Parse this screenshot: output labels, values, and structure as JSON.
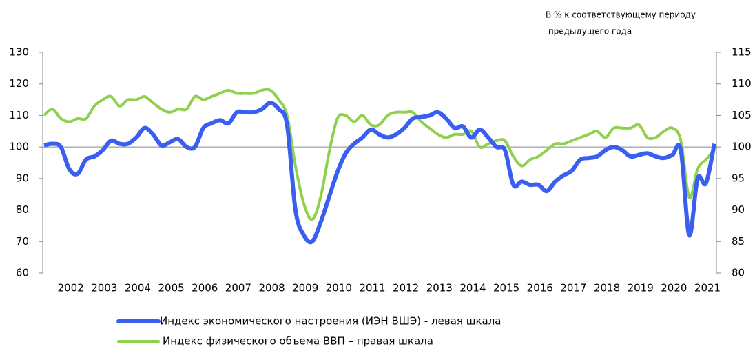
{
  "chart_data": {
    "type": "line",
    "annotation": [
      "В % к соответствующему периоду",
      " предыдущего года"
    ],
    "categories": [
      null,
      null,
      null,
      null,
      "2002",
      null,
      null,
      null,
      "2003",
      null,
      null,
      null,
      "2004",
      null,
      null,
      null,
      "2005",
      null,
      null,
      null,
      "2006",
      null,
      null,
      null,
      "2007",
      null,
      null,
      null,
      "2008",
      null,
      null,
      null,
      "2009",
      null,
      null,
      null,
      "2010",
      null,
      null,
      null,
      "2011",
      null,
      null,
      null,
      "2012",
      null,
      null,
      null,
      "2013",
      null,
      null,
      null,
      "2014",
      null,
      null,
      null,
      "2015",
      null,
      null,
      null,
      "2016",
      null,
      null,
      null,
      "2017",
      null,
      null,
      null,
      "2018",
      null,
      null,
      null,
      "2019",
      null,
      null,
      null,
      "2020",
      null,
      null,
      null,
      "2021"
    ],
    "series": [
      {
        "name": "Индекс экономического настроения (ИЭН ВШЭ) - левая шкала",
        "color": "#3a5ff0",
        "axis": "y",
        "values": [
          100.5,
          101,
          100,
          93,
          91.5,
          96,
          97,
          99,
          102,
          101,
          101,
          103,
          106,
          104,
          100.5,
          101.5,
          102.5,
          100,
          100,
          106,
          107.5,
          108.5,
          107.5,
          111,
          111,
          111,
          112,
          114,
          112,
          107,
          80,
          72,
          70,
          76,
          84,
          92,
          98,
          101,
          103,
          105.5,
          104,
          103,
          104,
          106,
          109,
          109.5,
          110,
          111,
          109,
          106,
          106.5,
          103,
          105.5,
          103,
          100,
          99,
          88,
          89,
          88,
          88,
          86,
          89,
          91,
          92.5,
          96,
          96.5,
          97,
          99,
          100,
          99,
          97,
          97.5,
          98,
          97,
          96.5,
          97.5,
          99,
          72,
          90,
          88.5,
          101
        ]
      },
      {
        "name": "Индекс физического объема ВВП – правая шкала",
        "color": "#8fd14f",
        "axis": "y2",
        "values": [
          105,
          106,
          104.5,
          104,
          104.5,
          104.5,
          106.5,
          107.5,
          108,
          106.5,
          107.5,
          107.5,
          108,
          107,
          106,
          105.5,
          106,
          106,
          108,
          107.5,
          108,
          108.5,
          109,
          108.5,
          108.5,
          108.5,
          109,
          109,
          107.5,
          105,
          97,
          91,
          88.5,
          92,
          99,
          104.5,
          105,
          104,
          105,
          103.5,
          103.5,
          105,
          105.5,
          105.5,
          105.5,
          104,
          103,
          102,
          101.5,
          102,
          102,
          102.5,
          100,
          100.5,
          101,
          101,
          98.5,
          97,
          98,
          98.5,
          99.5,
          100.5,
          100.5,
          101,
          101.5,
          102,
          102.5,
          101.5,
          103,
          103,
          103,
          103.5,
          101.5,
          101.5,
          102.5,
          103,
          101,
          92,
          96.5,
          98,
          99.5
        ]
      }
    ],
    "ylim": [
      60,
      130
    ],
    "yticks": [
      60,
      70,
      80,
      90,
      100,
      110,
      120,
      130
    ],
    "y2lim": [
      80,
      115
    ],
    "y2ticks": [
      80,
      85,
      90,
      95,
      100,
      105,
      110,
      115
    ],
    "baseline": 100
  }
}
